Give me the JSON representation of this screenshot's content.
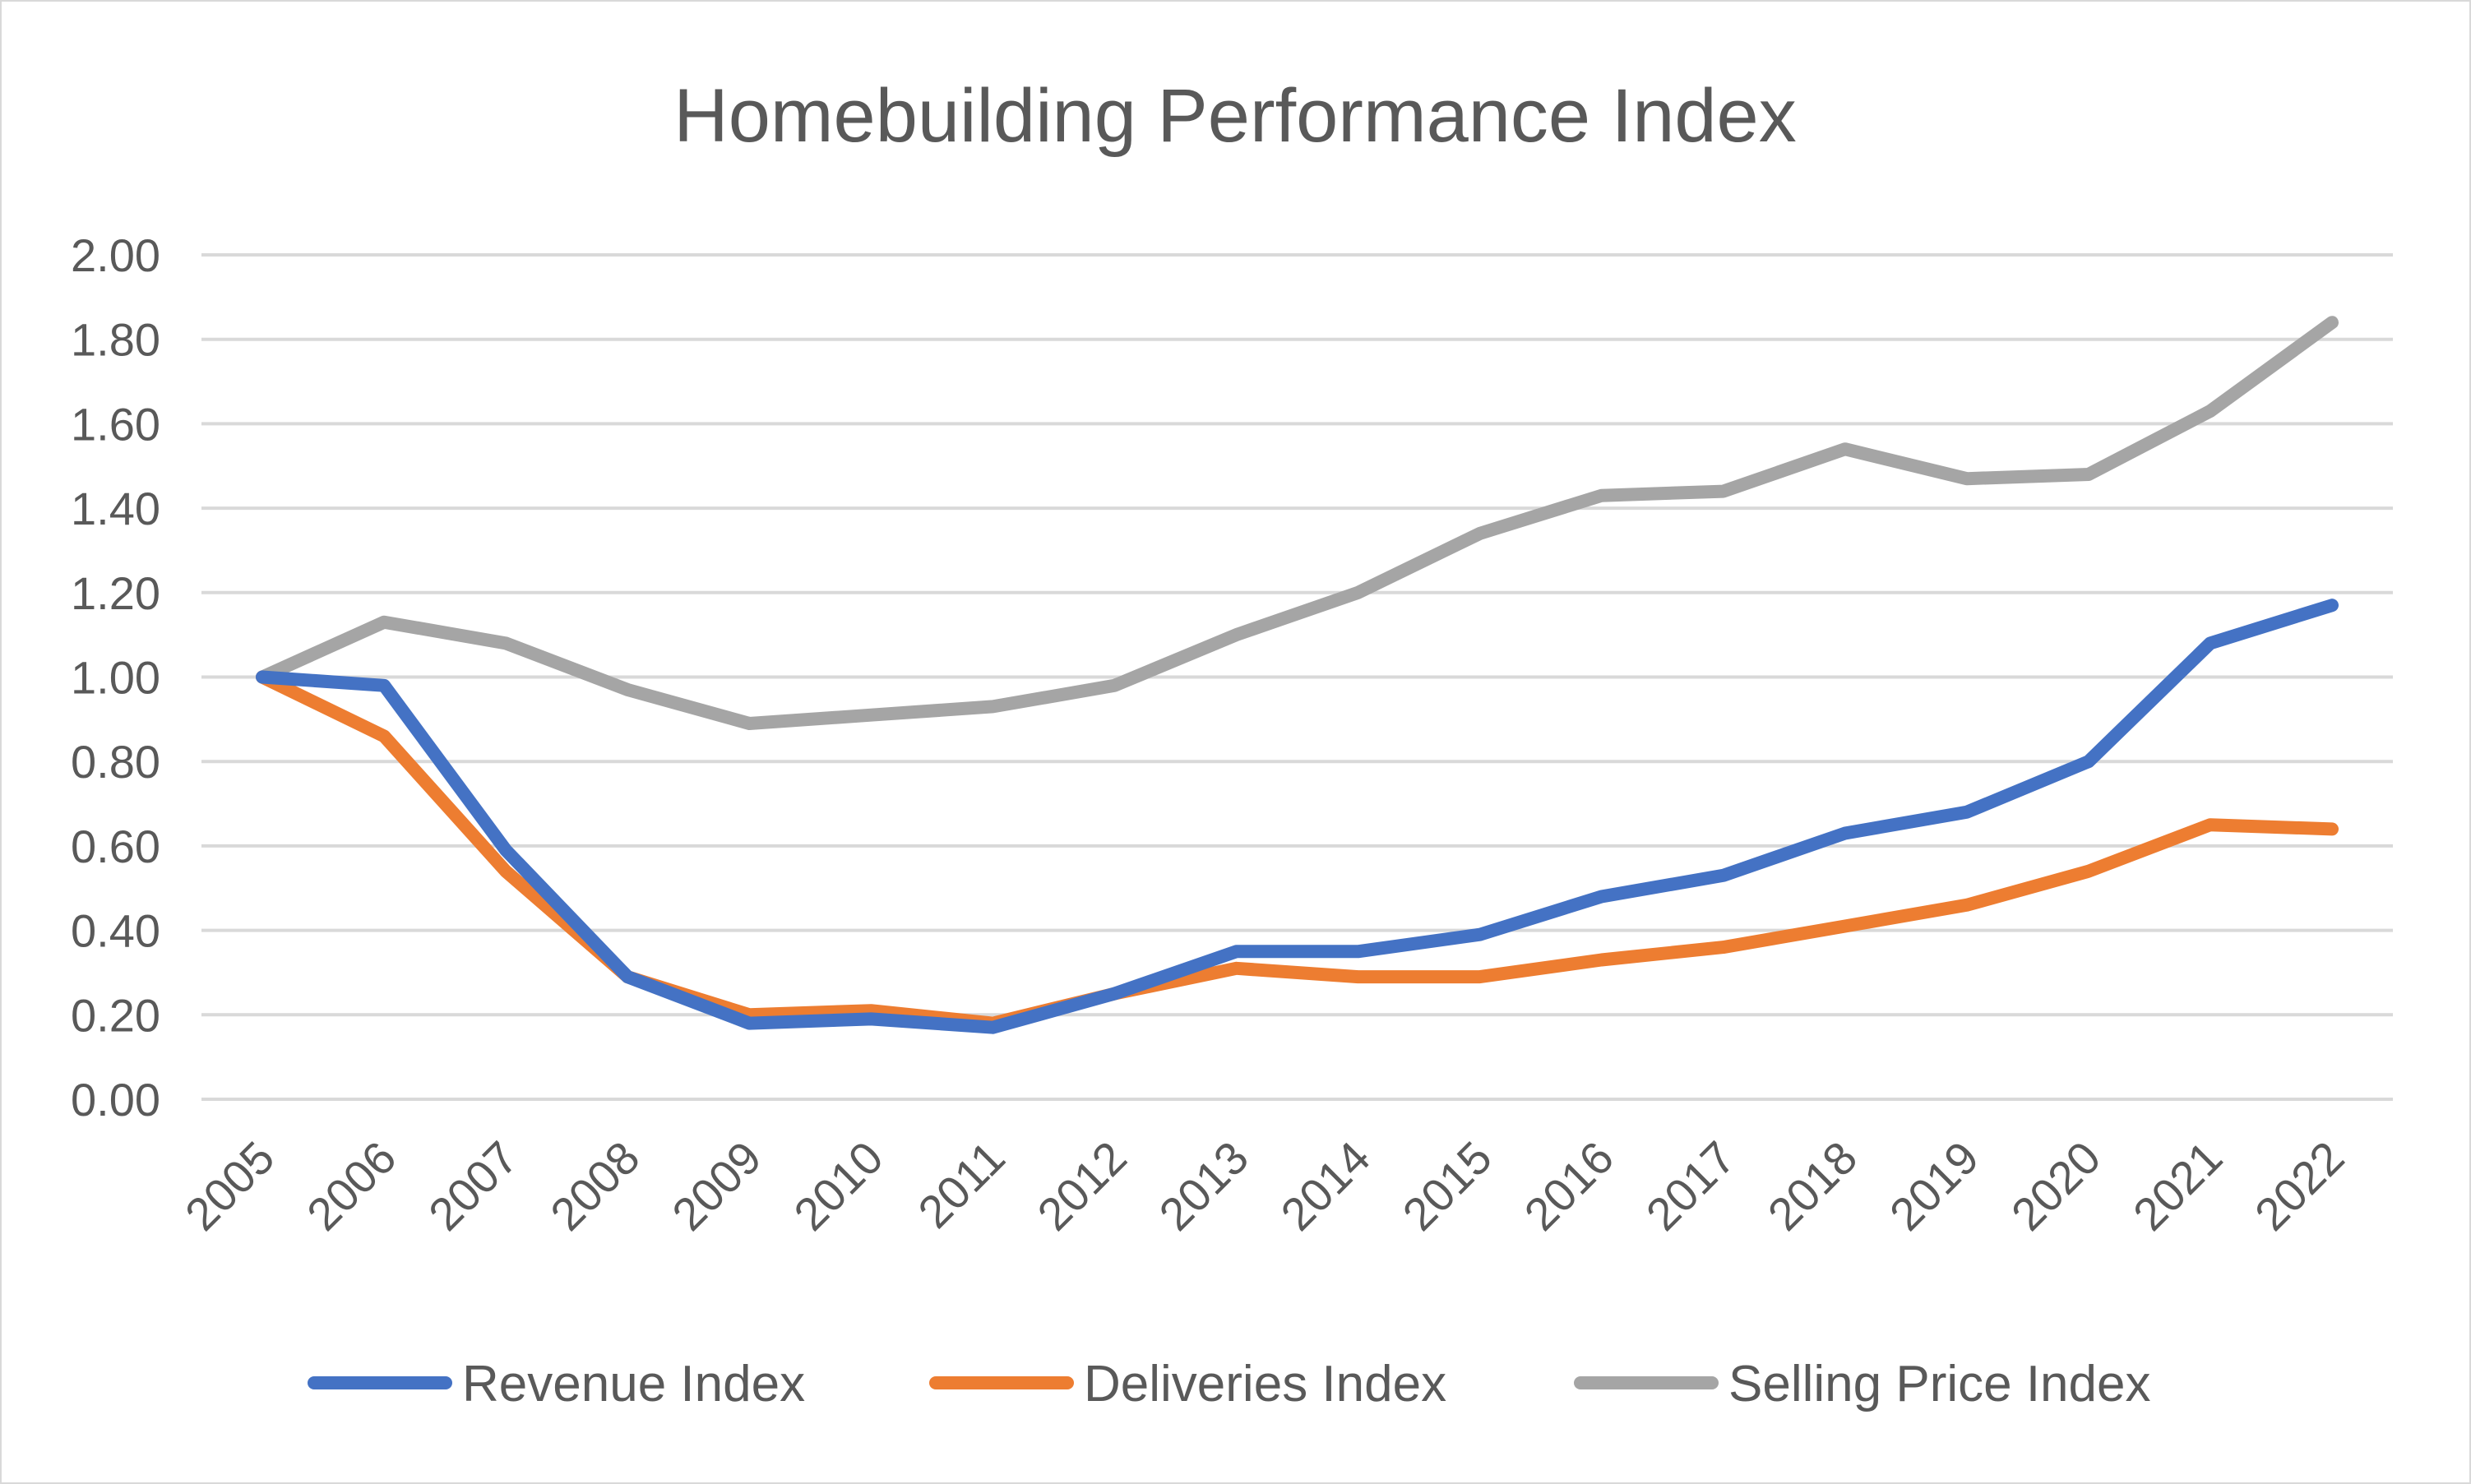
{
  "chart_data": {
    "type": "line",
    "title": "Homebuilding Performance Index",
    "xlabel": "",
    "ylabel": "",
    "categories": [
      "2005",
      "2006",
      "2007",
      "2008",
      "2009",
      "2010",
      "2011",
      "2012",
      "2013",
      "2014",
      "2015",
      "2016",
      "2017",
      "2018",
      "2019",
      "2020",
      "2021",
      "2022"
    ],
    "ylim": [
      0,
      2
    ],
    "yticks": [
      "0.00",
      "0.20",
      "0.40",
      "0.60",
      "0.80",
      "1.00",
      "1.20",
      "1.40",
      "1.60",
      "1.80",
      "2.00"
    ],
    "grid": true,
    "legend_position": "bottom",
    "series": [
      {
        "name": "Revenue Index",
        "color": "#4472c4",
        "values": [
          1.0,
          0.98,
          0.59,
          0.29,
          0.18,
          0.19,
          0.17,
          0.25,
          0.35,
          0.35,
          0.39,
          0.48,
          0.53,
          0.63,
          0.68,
          0.8,
          1.08,
          1.17
        ]
      },
      {
        "name": "Deliveries Index",
        "color": "#ed7d31",
        "values": [
          1.0,
          0.86,
          0.54,
          0.29,
          0.2,
          0.21,
          0.18,
          0.25,
          0.31,
          0.29,
          0.29,
          0.33,
          0.36,
          0.41,
          0.46,
          0.54,
          0.65,
          0.64
        ]
      },
      {
        "name": "Selling Price Index",
        "color": "#a5a5a5",
        "values": [
          1.0,
          1.13,
          1.08,
          0.97,
          0.89,
          0.91,
          0.93,
          0.98,
          1.1,
          1.2,
          1.34,
          1.43,
          1.44,
          1.54,
          1.47,
          1.48,
          1.63,
          1.84
        ]
      }
    ]
  }
}
